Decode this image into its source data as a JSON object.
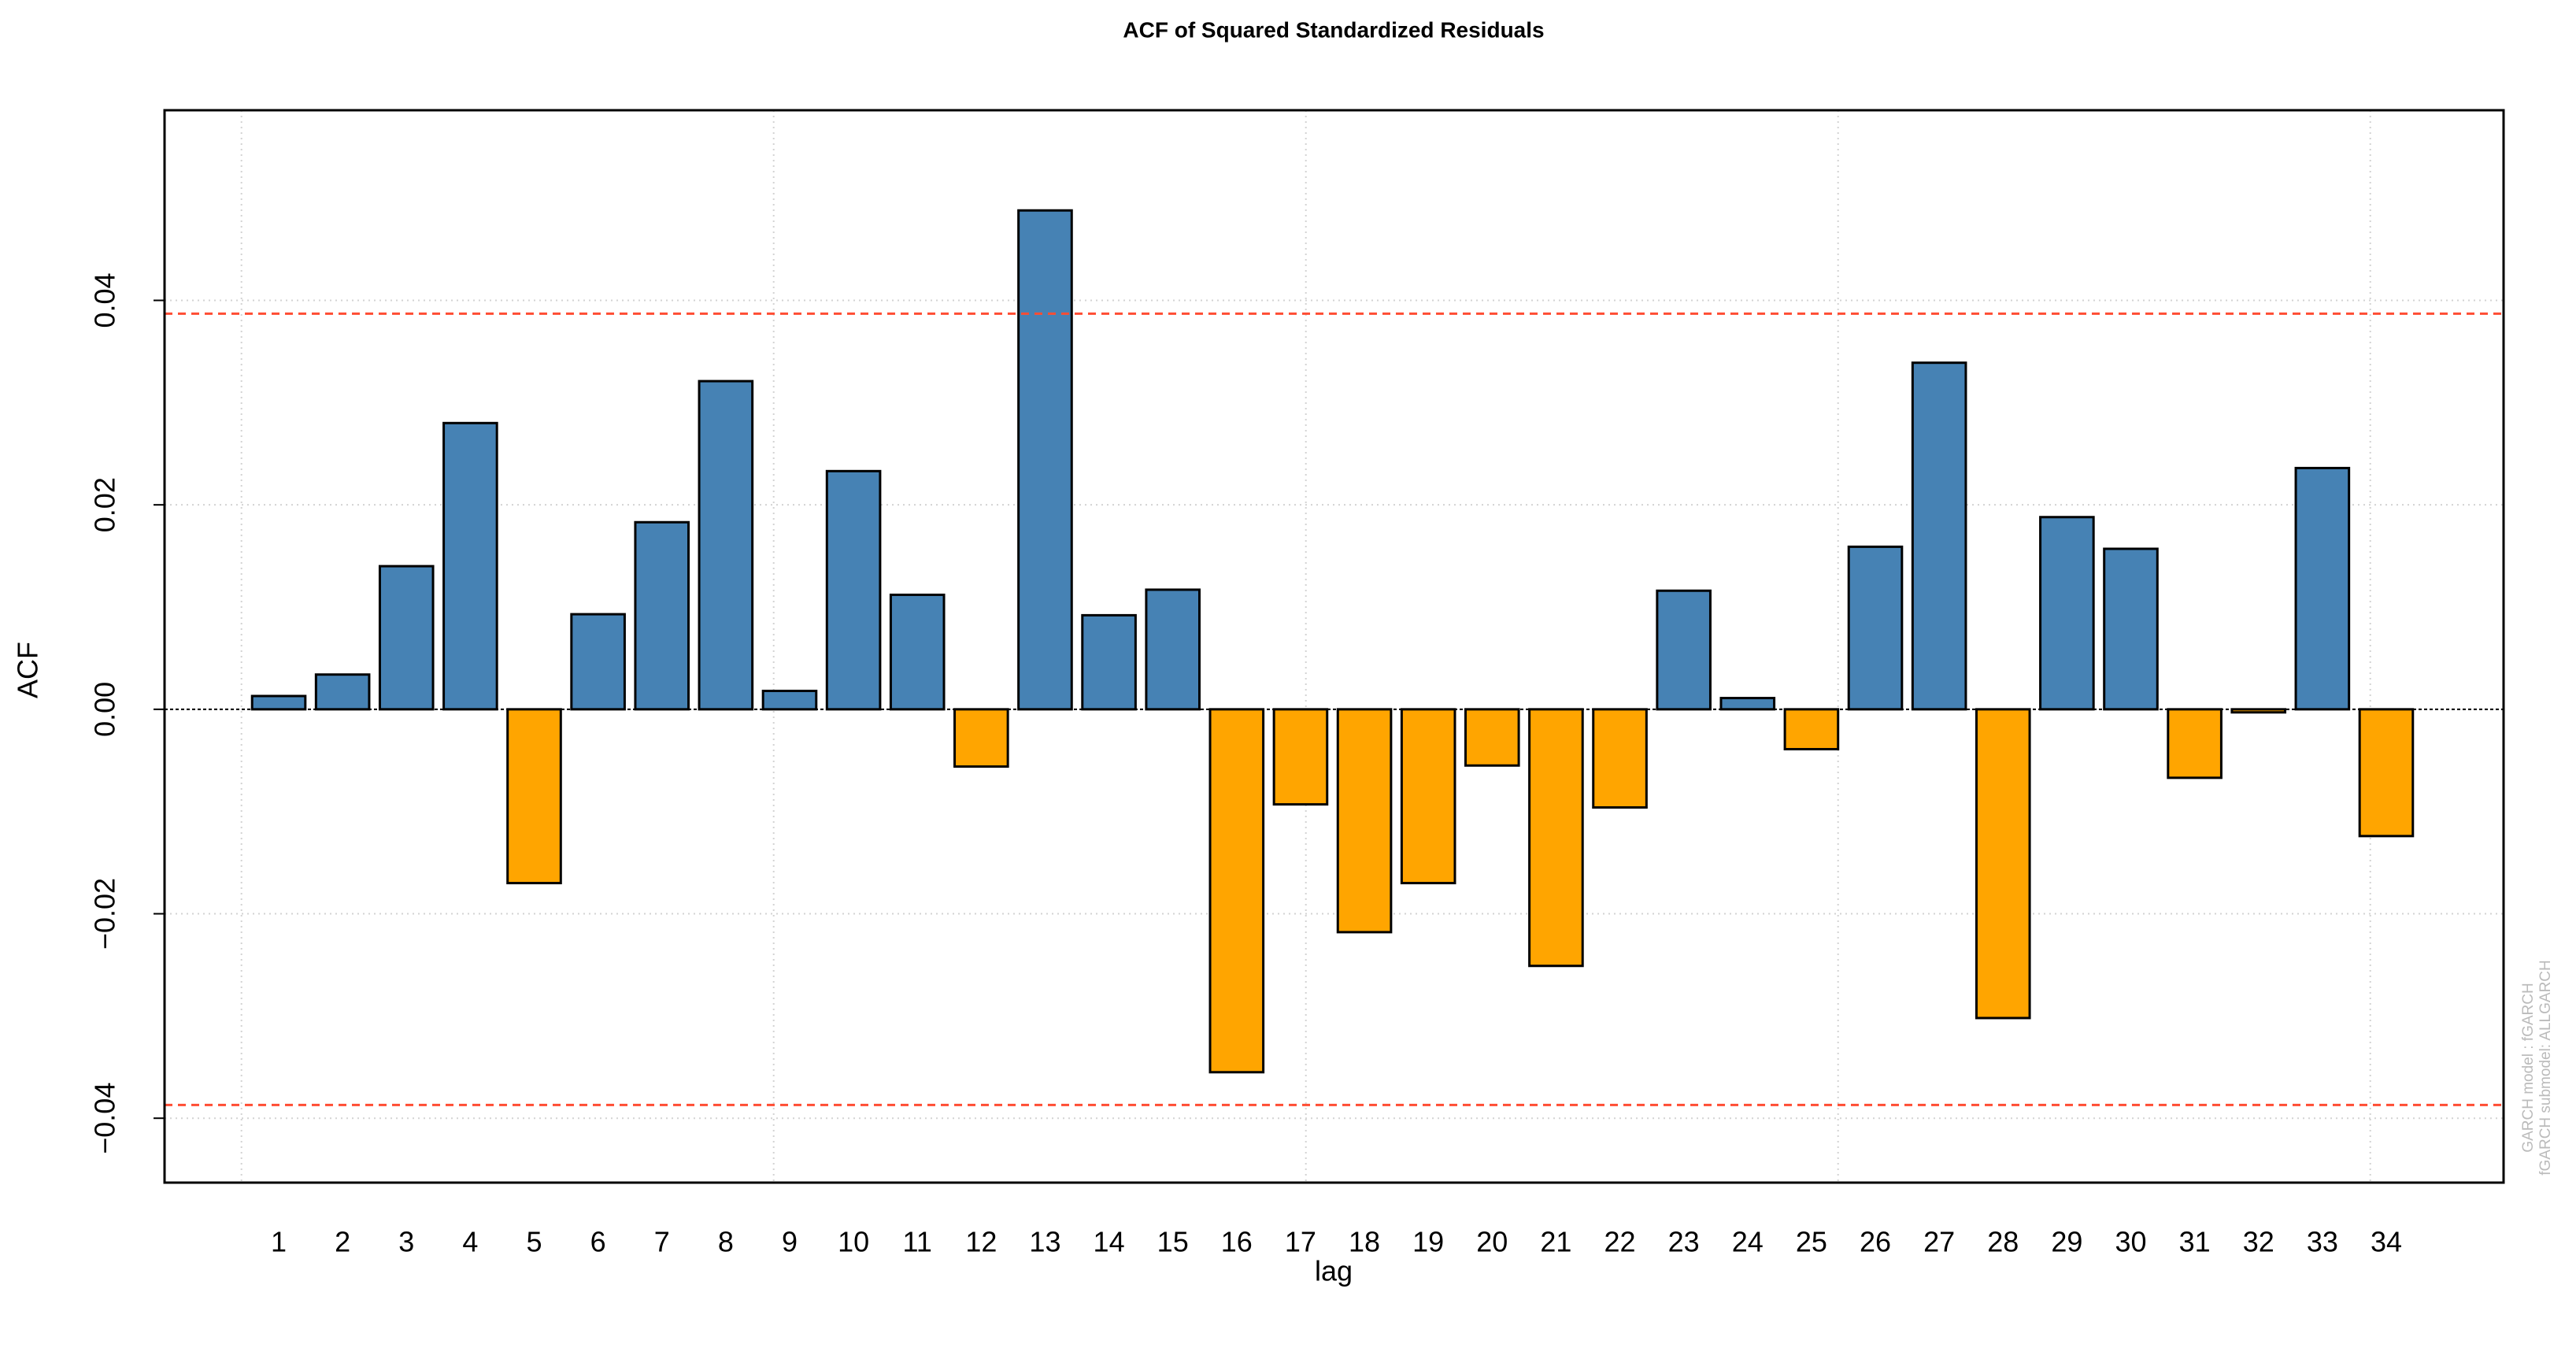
{
  "chart_data": {
    "type": "bar",
    "title": "ACF of Squared Standardized Residuals",
    "x_label": "lag",
    "y_label": "ACF",
    "annotations": [
      "GARCH model : fGARCH",
      "fGARCH submodel: ALLGARCH"
    ],
    "categories": [
      "1",
      "2",
      "3",
      "4",
      "5",
      "6",
      "7",
      "8",
      "9",
      "10",
      "11",
      "12",
      "13",
      "14",
      "15",
      "16",
      "17",
      "18",
      "19",
      "20",
      "21",
      "22",
      "23",
      "24",
      "25",
      "26",
      "27",
      "28",
      "29",
      "30",
      "31",
      "32",
      "33",
      "34"
    ],
    "values": [
      0.0013,
      0.0034,
      0.014,
      0.028,
      -0.017,
      0.0093,
      0.0183,
      0.0321,
      0.0018,
      0.0233,
      0.0112,
      -0.0056,
      0.0488,
      0.0092,
      0.0117,
      -0.0355,
      -0.0093,
      -0.0218,
      -0.017,
      -0.0055,
      -0.0251,
      -0.0096,
      0.0116,
      0.0011,
      -0.0039,
      0.0159,
      0.0339,
      -0.0302,
      0.0188,
      0.0157,
      -0.0067,
      -0.0003,
      0.0236,
      -0.0124
    ],
    "positive_color": "#4682b4",
    "negative_color": "#ffa500",
    "confidence_limits": [
      0.0387,
      -0.0387
    ],
    "confidence_color": "#ff4d33",
    "ylim": [
      -0.0463,
      0.0586
    ],
    "yticks": [
      {
        "value": -0.04,
        "label": "−0.04"
      },
      {
        "value": -0.02,
        "label": "−0.02"
      },
      {
        "value": 0,
        "label": "0.00"
      },
      {
        "value": 0.02,
        "label": "0.02"
      },
      {
        "value": 0.04,
        "label": "0.04"
      }
    ],
    "grid": true
  }
}
